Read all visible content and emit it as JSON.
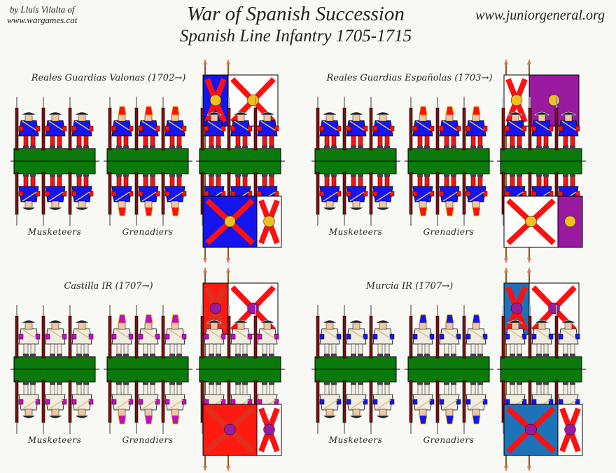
{
  "header": {
    "credit_line1": "by Lluís Vilalta of",
    "credit_line2": "www.wargames.cat",
    "title": "War of Spanish Succession",
    "subtitle": "Spanish Line Infantry 1705-1715",
    "site": "www.juniorgeneral.org"
  },
  "units": [
    {
      "title": "Reales Guardias Valonas (1702→)",
      "musketeers_label": "Musketeers",
      "grenadiers_label": "Grenadiers",
      "colors": {
        "coat": "#1515f0",
        "cuff": "#ff1010",
        "breeches": "#ff1010",
        "hat": "#202020",
        "grenadier_cap": "#ff1010",
        "flag1": "#1515f0",
        "flag1_cross": "#ff1010",
        "flag2": "#ffffff",
        "flag2_cross": "#ff1010",
        "flag2_charge": "#f0c020"
      }
    },
    {
      "title": "Reales Guardias Españolas (1703→)",
      "musketeers_label": "Musketeers",
      "grenadiers_label": "Grenadiers",
      "colors": {
        "coat": "#1515f0",
        "cuff": "#ff1010",
        "breeches": "#ff1010",
        "hat": "#202020",
        "grenadier_cap": "#ff1010",
        "flag1": "#ffffff",
        "flag1_cross": "#ff1010",
        "flag2": "#9a1aa0",
        "flag2_cross": "#9a1aa0",
        "flag2_charge": "#f0c020"
      }
    },
    {
      "title": "Castilla IR (1707→)",
      "musketeers_label": "Musketeers",
      "grenadiers_label": "Grenadiers",
      "colors": {
        "coat": "#f0ece0",
        "cuff": "#c010c0",
        "breeches": "#f0ece0",
        "hat": "#202020",
        "grenadier_cap": "#c010c0",
        "flag1": "#ff1a10",
        "flag1_cross": "#e03020",
        "flag2": "#ffffff",
        "flag2_cross": "#ff1010",
        "flag2_charge": "#9a1aa0"
      }
    },
    {
      "title": "Murcia IR (1707→)",
      "musketeers_label": "Musketeers",
      "grenadiers_label": "Grenadiers",
      "colors": {
        "coat": "#f0ece0",
        "cuff": "#1515f0",
        "breeches": "#f0ece0",
        "hat": "#202020",
        "grenadier_cap": "#1515f0",
        "flag1": "#1e72b8",
        "flag1_cross": "#ff1010",
        "flag2": "#ffffff",
        "flag2_cross": "#ff1010",
        "flag2_charge": "#9a1aa0"
      }
    }
  ],
  "colors": {
    "base": "#0a7a0a",
    "background": "#f8f8f4"
  }
}
